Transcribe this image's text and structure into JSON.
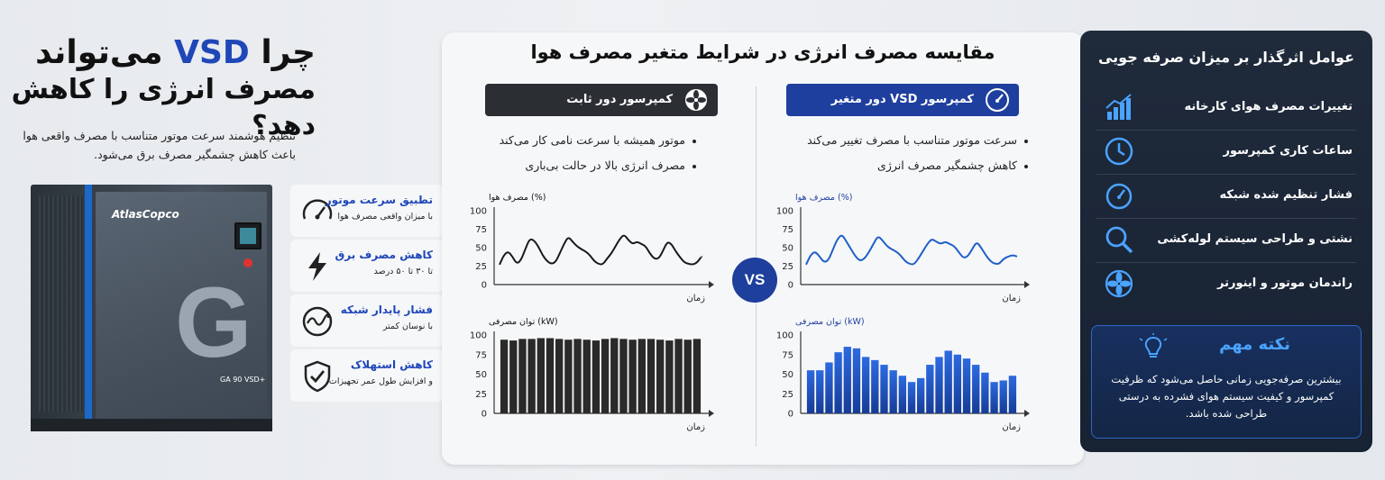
{
  "left": {
    "headline_prefix": "چرا",
    "headline_vsd": "VSD",
    "headline_suffix": "می‌تواند",
    "headline_line2": "مصرف انرژی را کاهش دهد؟",
    "intro_line1": "تنظیم هوشمند سرعت موتور متناسب با مصرف واقعی هوا",
    "intro_line2": "باعث کاهش چشمگیر مصرف برق می‌شود.",
    "compressor": {
      "brand": "AtlasCopco",
      "model": "GA 90 VSD+",
      "letter": "G"
    },
    "features": [
      {
        "title": "تطبیق سرعت موتور",
        "sub": "با میزان واقعی مصرف هوا",
        "icon": "speedometer-icon"
      },
      {
        "title": "کاهش مصرف برق",
        "sub": "تا ۳۰ تا ۵۰ درصد",
        "icon": "lightning-icon"
      },
      {
        "title": "فشار پایدار شبکه",
        "sub": "با نوسان کمتر",
        "icon": "wave-gauge-icon"
      },
      {
        "title": "کاهش استهلاک",
        "sub": "و افزایش طول عمر تجهیزات",
        "icon": "shield-check-icon"
      }
    ]
  },
  "middle": {
    "title": "مقایسه مصرف انرژی در شرایط متغیر مصرف هوا",
    "vs_label": "VS",
    "fixed": {
      "header": "کمپرسور دور ثابت",
      "bullets": [
        "موتور همیشه با سرعت نامی کار می‌کند",
        "مصرف انرژی بالا در حالت بی‌باری"
      ]
    },
    "variable": {
      "header": "کمپرسور VSD دور متغیر",
      "bullets": [
        "سرعت موتور متناسب با مصرف تغییر می‌کند",
        "کاهش چشمگیر مصرف انرژی"
      ]
    }
  },
  "chart_data": [
    {
      "type": "line",
      "ylabel": "مصرف هوا (%)",
      "xlabel": "زمان",
      "ylim": [
        0,
        100
      ],
      "yticks": [
        0,
        25,
        50,
        75,
        100
      ],
      "color": "#1a1a1a",
      "values": [
        27,
        40,
        45,
        38,
        28,
        33,
        48,
        62,
        60,
        52,
        40,
        32,
        28,
        30,
        42,
        55,
        65,
        58,
        52,
        48,
        45,
        40,
        32,
        28,
        27,
        35,
        42,
        52,
        62,
        68,
        60,
        55,
        58,
        55,
        52,
        42,
        35,
        35,
        45,
        58,
        55,
        45,
        37,
        30,
        28,
        27,
        30,
        38
      ]
    },
    {
      "type": "bar",
      "ylabel": "توان مصرفی (kW)",
      "xlabel": "زمان",
      "ylim": [
        0,
        100
      ],
      "yticks": [
        0,
        25,
        50,
        75,
        100
      ],
      "color": "#2a2a2a",
      "values": [
        94,
        93,
        95,
        95,
        96,
        96,
        95,
        94,
        95,
        94,
        93,
        95,
        96,
        95,
        94,
        95,
        95,
        94,
        93,
        95,
        94,
        95
      ]
    },
    {
      "type": "line",
      "ylabel": "مصرف هوا (%)",
      "xlabel": "زمان",
      "ylim": [
        0,
        100
      ],
      "yticks": [
        0,
        25,
        50,
        75,
        100
      ],
      "color": "#1f5fc8",
      "values": [
        27,
        40,
        45,
        38,
        30,
        33,
        48,
        62,
        68,
        58,
        48,
        38,
        32,
        35,
        44,
        55,
        66,
        60,
        52,
        48,
        45,
        40,
        32,
        28,
        27,
        35,
        45,
        55,
        62,
        58,
        55,
        58,
        55,
        52,
        44,
        36,
        38,
        48,
        58,
        50,
        40,
        32,
        28,
        28,
        35,
        38,
        40,
        38
      ]
    },
    {
      "type": "bar",
      "ylabel": "توان مصرفی (kW)",
      "xlabel": "زمان",
      "ylim": [
        0,
        100
      ],
      "yticks": [
        0,
        25,
        50,
        75,
        100
      ],
      "color": "#1e4fb5",
      "values": [
        55,
        55,
        65,
        78,
        85,
        83,
        72,
        68,
        62,
        55,
        48,
        40,
        45,
        62,
        72,
        80,
        75,
        70,
        62,
        52,
        40,
        42,
        48
      ]
    }
  ],
  "right": {
    "title": "عوامل اثرگذار بر میزان صرفه جویی",
    "items": [
      {
        "label": "تغییرات مصرف هوای کارخانه",
        "icon": "bar-growth-icon"
      },
      {
        "label": "ساعات کاری کمپرسور",
        "icon": "clock-icon"
      },
      {
        "label": "فشار تنظیم شده شبکه",
        "icon": "pressure-gauge-icon"
      },
      {
        "label": "نشتی و طراحی سیستم لوله‌کشی",
        "icon": "magnifier-icon"
      },
      {
        "label": "راندمان موتور و اینورتر",
        "icon": "fan-icon"
      }
    ],
    "note_title": "نکته مهم",
    "note_body": "بیشترین صرفه‌جویی زمانی حاصل می‌شود که ظرفیت کمپرسور و کیفیت سیستم هوای فشرده به درستی طراحی شده باشد."
  },
  "colors": {
    "accent": "#1f47b8",
    "dark_panel": "#1b2636",
    "note_blue": "#4aa3ff"
  }
}
